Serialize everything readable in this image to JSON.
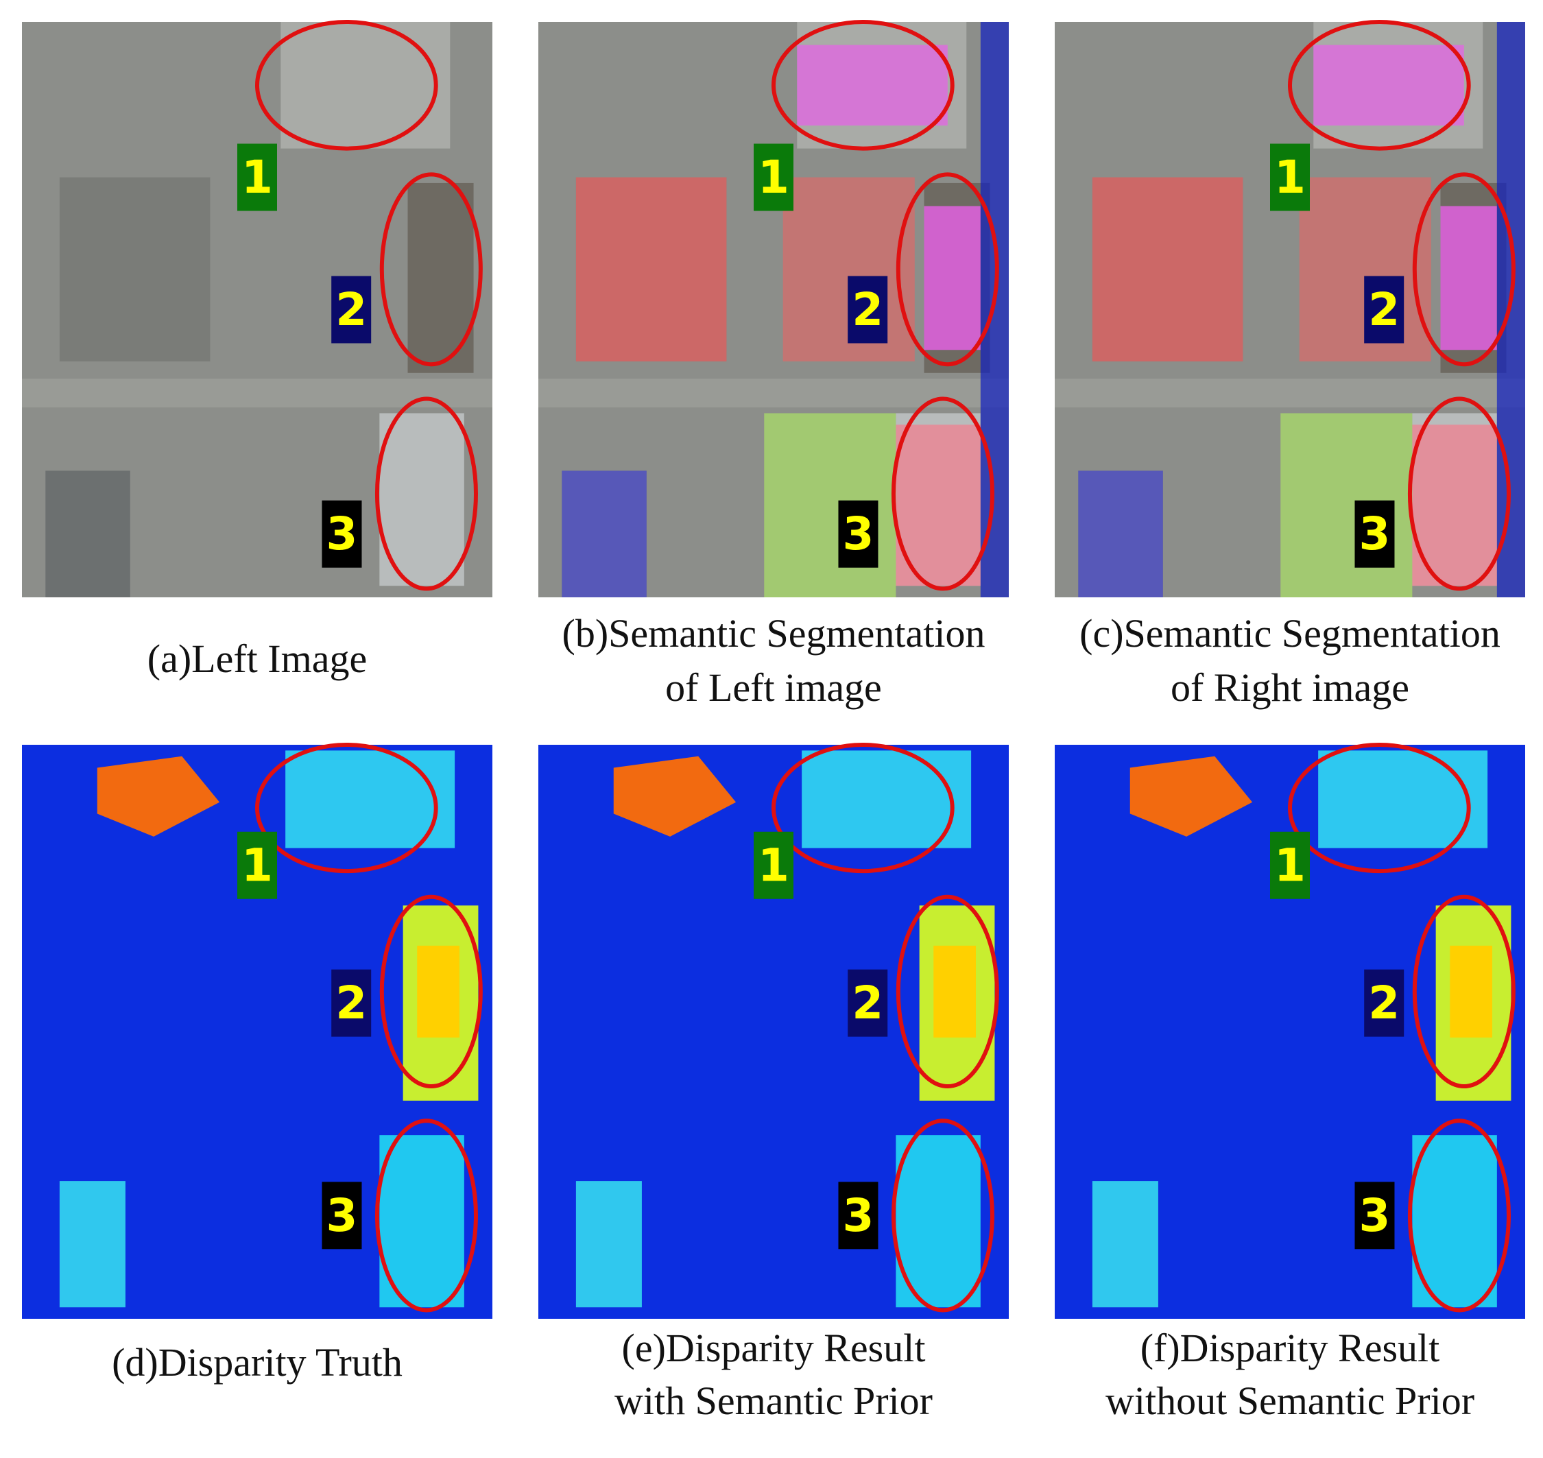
{
  "panels": [
    {
      "caption": [
        "(a)Left Image"
      ],
      "markers": [
        "1",
        "2",
        "3"
      ]
    },
    {
      "caption": [
        "(b)Semantic Segmentation",
        "of Left image"
      ],
      "markers": [
        "1",
        "2",
        "3"
      ]
    },
    {
      "caption": [
        "(c)Semantic Segmentation",
        "of Right image"
      ],
      "markers": [
        "1",
        "2",
        "3"
      ]
    },
    {
      "caption": [
        "(d)Disparity Truth"
      ],
      "markers": [
        "1",
        "2",
        "3"
      ]
    },
    {
      "caption": [
        "(e)Disparity Result",
        "with Semantic Prior"
      ],
      "markers": [
        "1",
        "2",
        "3"
      ]
    },
    {
      "caption": [
        "(f)Disparity Result",
        "without Semantic Prior"
      ],
      "markers": [
        "1",
        "2",
        "3"
      ]
    }
  ]
}
